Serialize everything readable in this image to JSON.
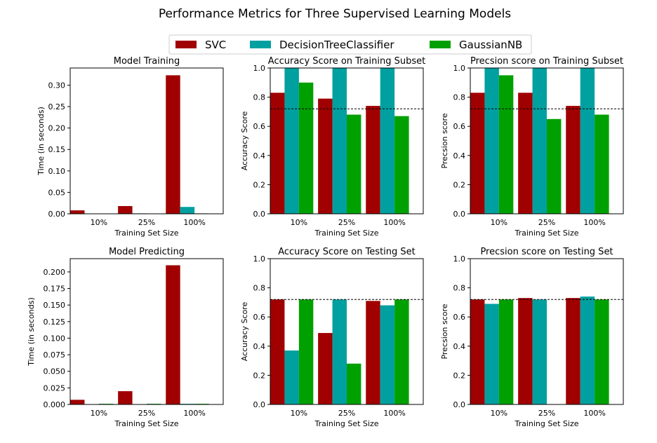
{
  "figure": {
    "title": "Performance Metrics for Three Supervised Learning Models"
  },
  "legend": [
    {
      "label": "SVC",
      "color": "#a00000"
    },
    {
      "label": "DecisionTreeClassifier",
      "color": "#00a0a0"
    },
    {
      "label": "GaussianNB",
      "color": "#00a000"
    }
  ],
  "chart_data": [
    {
      "type": "bar",
      "title": "Model Training",
      "xlabel": "Training Set Size",
      "ylabel": "Time (in seconds)",
      "categories": [
        "10%",
        "25%",
        "100%"
      ],
      "ylim": [
        0,
        0.34
      ],
      "yticks": [
        0.0,
        0.05,
        0.1,
        0.15,
        0.2,
        0.25,
        0.3
      ],
      "ytick_labels": [
        "0.00",
        "0.05",
        "0.10",
        "0.15",
        "0.20",
        "0.25",
        "0.30"
      ],
      "baseline": null,
      "series": [
        {
          "name": "SVC",
          "values": [
            0.008,
            0.018,
            0.323
          ]
        },
        {
          "name": "DecisionTreeClassifier",
          "values": [
            0.0003,
            0.001,
            0.016
          ]
        },
        {
          "name": "GaussianNB",
          "values": [
            0.0002,
            0.0004,
            0.001
          ]
        }
      ]
    },
    {
      "type": "bar",
      "title": "Accuracy Score on Training Subset",
      "xlabel": "Training Set Size",
      "ylabel": "Accuracy Score",
      "categories": [
        "10%",
        "25%",
        "100%"
      ],
      "ylim": [
        0,
        1.0
      ],
      "yticks": [
        0.0,
        0.2,
        0.4,
        0.6,
        0.8,
        1.0
      ],
      "ytick_labels": [
        "0.0",
        "0.2",
        "0.4",
        "0.6",
        "0.8",
        "1.0"
      ],
      "baseline": 0.72,
      "series": [
        {
          "name": "SVC",
          "values": [
            0.83,
            0.79,
            0.74
          ]
        },
        {
          "name": "DecisionTreeClassifier",
          "values": [
            1.0,
            1.0,
            1.0
          ]
        },
        {
          "name": "GaussianNB",
          "values": [
            0.9,
            0.68,
            0.67
          ]
        }
      ]
    },
    {
      "type": "bar",
      "title": "Precsion score on Training Subset",
      "xlabel": "Training Set Size",
      "ylabel": "Precsion score",
      "categories": [
        "10%",
        "25%",
        "100%"
      ],
      "ylim": [
        0,
        1.0
      ],
      "yticks": [
        0.0,
        0.2,
        0.4,
        0.6,
        0.8,
        1.0
      ],
      "ytick_labels": [
        "0.0",
        "0.2",
        "0.4",
        "0.6",
        "0.8",
        "1.0"
      ],
      "baseline": 0.72,
      "series": [
        {
          "name": "SVC",
          "values": [
            0.83,
            0.83,
            0.74
          ]
        },
        {
          "name": "DecisionTreeClassifier",
          "values": [
            1.0,
            1.0,
            1.0
          ]
        },
        {
          "name": "GaussianNB",
          "values": [
            0.95,
            0.65,
            0.68
          ]
        }
      ]
    },
    {
      "type": "bar",
      "title": "Model Predicting",
      "xlabel": "Training Set Size",
      "ylabel": "Time (in seconds)",
      "categories": [
        "10%",
        "25%",
        "100%"
      ],
      "ylim": [
        0,
        0.22
      ],
      "yticks": [
        0.0,
        0.025,
        0.05,
        0.075,
        0.1,
        0.125,
        0.15,
        0.175,
        0.2
      ],
      "ytick_labels": [
        "0.000",
        "0.025",
        "0.050",
        "0.075",
        "0.100",
        "0.125",
        "0.150",
        "0.175",
        "0.200"
      ],
      "baseline": null,
      "series": [
        {
          "name": "SVC",
          "values": [
            0.007,
            0.02,
            0.21
          ]
        },
        {
          "name": "DecisionTreeClassifier",
          "values": [
            0.0005,
            0.0005,
            0.001
          ]
        },
        {
          "name": "GaussianNB",
          "values": [
            0.001,
            0.001,
            0.001
          ]
        }
      ]
    },
    {
      "type": "bar",
      "title": "Accuracy Score on Testing Set",
      "xlabel": "Training Set Size",
      "ylabel": "Accuracy Score",
      "categories": [
        "10%",
        "25%",
        "100%"
      ],
      "ylim": [
        0,
        1.0
      ],
      "yticks": [
        0.0,
        0.2,
        0.4,
        0.6,
        0.8,
        1.0
      ],
      "ytick_labels": [
        "0.0",
        "0.2",
        "0.4",
        "0.6",
        "0.8",
        "1.0"
      ],
      "baseline": 0.72,
      "series": [
        {
          "name": "SVC",
          "values": [
            0.72,
            0.49,
            0.71
          ]
        },
        {
          "name": "DecisionTreeClassifier",
          "values": [
            0.37,
            0.72,
            0.68
          ]
        },
        {
          "name": "GaussianNB",
          "values": [
            0.72,
            0.28,
            0.72
          ]
        }
      ]
    },
    {
      "type": "bar",
      "title": "Precsion score on Testing Set",
      "xlabel": "Training Set Size",
      "ylabel": "Precsion score",
      "categories": [
        "10%",
        "25%",
        "100%"
      ],
      "ylim": [
        0,
        1.0
      ],
      "yticks": [
        0.0,
        0.2,
        0.4,
        0.6,
        0.8,
        1.0
      ],
      "ytick_labels": [
        "0.0",
        "0.2",
        "0.4",
        "0.6",
        "0.8",
        "1.0"
      ],
      "baseline": 0.72,
      "series": [
        {
          "name": "SVC",
          "values": [
            0.72,
            0.73,
            0.73
          ]
        },
        {
          "name": "DecisionTreeClassifier",
          "values": [
            0.69,
            0.72,
            0.74
          ]
        },
        {
          "name": "GaussianNB",
          "values": [
            0.72,
            0.0,
            0.72
          ]
        }
      ]
    }
  ]
}
